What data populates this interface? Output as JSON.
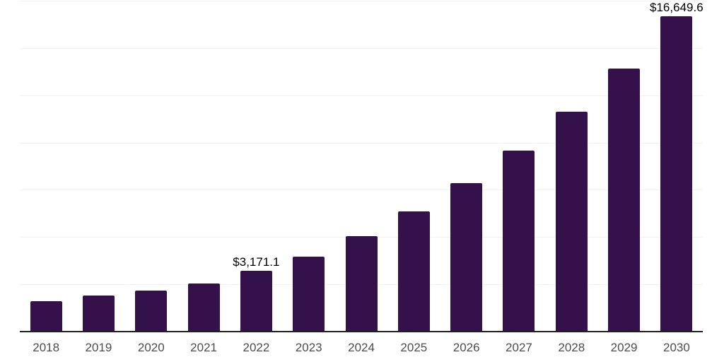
{
  "chart_data": {
    "type": "bar",
    "title": "",
    "xlabel": "",
    "ylabel": "",
    "categories": [
      "2018",
      "2019",
      "2020",
      "2021",
      "2022",
      "2023",
      "2024",
      "2025",
      "2026",
      "2027",
      "2028",
      "2029",
      "2030"
    ],
    "values": [
      1560,
      1860,
      2150,
      2520,
      3171.1,
      3940,
      5010,
      6310,
      7830,
      9540,
      11590,
      13890,
      16649.6
    ],
    "annotations": [
      {
        "category": "2022",
        "text": "$3,171.1"
      },
      {
        "category": "2030",
        "text": "$16,649.6"
      }
    ],
    "ylim": [
      0,
      17500
    ],
    "gridline_step": 2500,
    "grid": "horizontal-only",
    "legend": "none",
    "y_axis_tick_labels": "none",
    "colors": {
      "bar": "#35114C",
      "axis_line": "#1f1f1f",
      "gridline": "#f2f2f2",
      "x_tick_label": "#4d4d4d",
      "data_label": "#000000",
      "background": "#ffffff"
    }
  }
}
